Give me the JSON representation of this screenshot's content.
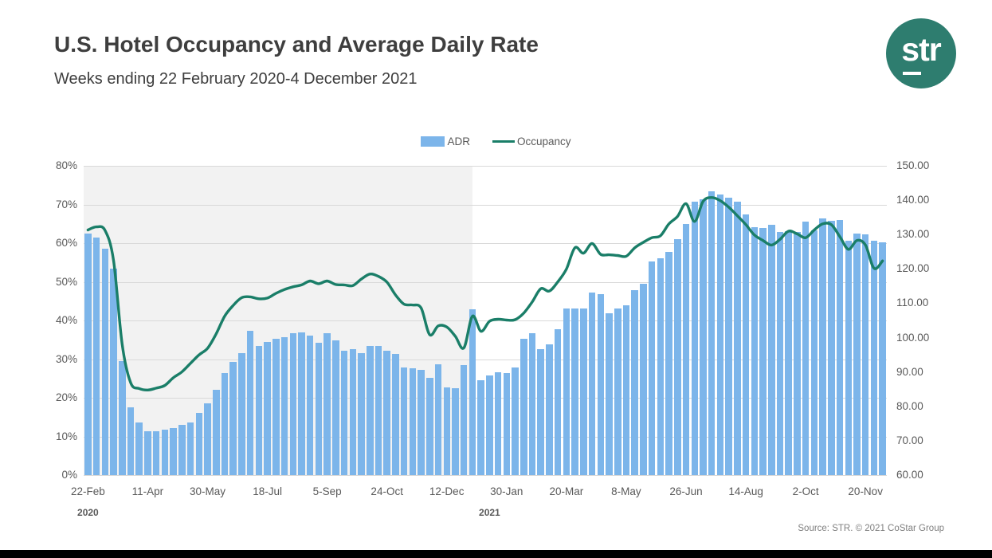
{
  "header": {
    "title": "U.S. Hotel Occupancy and Average Daily Rate",
    "subtitle": "Weeks ending 22 February 2020-4 December 2021",
    "logo_text": "str"
  },
  "legend": {
    "adr_label": "ADR",
    "occupancy_label": "Occupancy"
  },
  "footer": {
    "source": "Source: STR. © 2021 CoStar Group"
  },
  "colors": {
    "bar": "#7cb5ea",
    "line": "#1a7e68",
    "logo": "#2e7d6f",
    "shade": "#f2f2f2",
    "grid": "#d9d9d9",
    "axis_text": "#595959"
  },
  "chart_data": {
    "type": "combo-bar-line",
    "title": "U.S. Hotel Occupancy and Average Daily Rate",
    "x": [
      "22 Feb 2020",
      "29 Feb 2020",
      "7 Mar 2020",
      "14 Mar 2020",
      "21 Mar 2020",
      "28 Mar 2020",
      "4 Apr 2020",
      "11 Apr 2020",
      "18 Apr 2020",
      "25 Apr 2020",
      "2 May 2020",
      "9 May 2020",
      "16 May 2020",
      "23 May 2020",
      "30 May 2020",
      "6 Jun 2020",
      "13 Jun 2020",
      "20 Jun 2020",
      "27 Jun 2020",
      "4 Jul 2020",
      "11 Jul 2020",
      "18 Jul 2020",
      "25 Jul 2020",
      "1 Aug 2020",
      "8 Aug 2020",
      "15 Aug 2020",
      "22 Aug 2020",
      "29 Aug 2020",
      "5 Sep 2020",
      "12 Sep 2020",
      "19 Sep 2020",
      "26 Sep 2020",
      "3 Oct 2020",
      "10 Oct 2020",
      "17 Oct 2020",
      "24 Oct 2020",
      "31 Oct 2020",
      "7 Nov 2020",
      "14 Nov 2020",
      "21 Nov 2020",
      "28 Nov 2020",
      "5 Dec 2020",
      "12 Dec 2020",
      "19 Dec 2020",
      "26 Dec 2020",
      "2 Jan 2021",
      "9 Jan 2021",
      "16 Jan 2021",
      "23 Jan 2021",
      "30 Jan 2021",
      "6 Feb 2021",
      "13 Feb 2021",
      "20 Feb 2021",
      "27 Feb 2021",
      "6 Mar 2021",
      "13 Mar 2021",
      "20 Mar 2021",
      "27 Mar 2021",
      "3 Apr 2021",
      "10 Apr 2021",
      "17 Apr 2021",
      "24 Apr 2021",
      "1 May 2021",
      "8 May 2021",
      "15 May 2021",
      "22 May 2021",
      "29 May 2021",
      "5 Jun 2021",
      "12 Jun 2021",
      "19 Jun 2021",
      "26 Jun 2021",
      "3 Jul 2021",
      "10 Jul 2021",
      "17 Jul 2021",
      "24 Jul 2021",
      "31 Jul 2021",
      "7 Aug 2021",
      "14 Aug 2021",
      "21 Aug 2021",
      "28 Aug 2021",
      "4 Sep 2021",
      "11 Sep 2021",
      "18 Sep 2021",
      "25 Sep 2021",
      "2 Oct 2021",
      "9 Oct 2021",
      "16 Oct 2021",
      "23 Oct 2021",
      "30 Oct 2021",
      "6 Nov 2021",
      "13 Nov 2021",
      "20 Nov 2021",
      "27 Nov 2021",
      "4 Dec 2021"
    ],
    "series": [
      {
        "name": "ADR",
        "type": "bar",
        "axis": "right",
        "unit": "USD",
        "values": [
          130.4,
          129.2,
          125.8,
          120.0,
          93.2,
          79.8,
          75.4,
          72.7,
          72.7,
          73.2,
          73.6,
          74.6,
          75.3,
          78.0,
          80.9,
          84.8,
          89.6,
          93.0,
          95.6,
          101.9,
          97.7,
          98.7,
          99.7,
          100.2,
          101.4,
          101.6,
          100.6,
          98.6,
          101.2,
          99.3,
          96.2,
          96.6,
          95.6,
          97.7,
          97.7,
          96.3,
          95.2,
          91.3,
          91.1,
          90.7,
          88.4,
          92.2,
          85.5,
          85.2,
          92.0,
          108.2,
          87.5,
          89.0,
          90.0,
          89.6,
          91.4,
          99.6,
          101.4,
          96.6,
          98.1,
          102.5,
          108.4,
          108.4,
          108.4,
          113.1,
          112.7,
          107.0,
          108.6,
          109.5,
          113.8,
          115.7,
          122.1,
          123.2,
          124.9,
          128.6,
          133.1,
          139.5,
          140.2,
          142.7,
          141.7,
          140.7,
          139.5,
          135.8,
          132.1,
          131.9,
          132.9,
          130.8,
          131.0,
          130.8,
          133.7,
          131.3,
          134.6,
          134.0,
          134.3,
          128.1,
          130.2,
          130.1,
          128.3,
          127.8
        ]
      },
      {
        "name": "Occupancy",
        "type": "line",
        "axis": "left",
        "unit": "%",
        "values": [
          63.4,
          64.2,
          63.3,
          55.5,
          33.9,
          23.9,
          22.4,
          22.0,
          22.5,
          23.2,
          25.2,
          26.7,
          28.9,
          31.1,
          32.8,
          36.5,
          41.1,
          43.9,
          45.9,
          46.1,
          45.6,
          45.8,
          47.0,
          48.0,
          48.7,
          49.2,
          50.2,
          49.5,
          50.2,
          49.3,
          49.2,
          49.0,
          50.7,
          52.0,
          51.4,
          49.9,
          46.6,
          44.2,
          44.0,
          43.2,
          36.3,
          38.6,
          38.3,
          35.9,
          32.9,
          41.1,
          37.2,
          39.8,
          40.3,
          40.1,
          40.2,
          41.9,
          44.8,
          48.2,
          47.6,
          50.0,
          53.3,
          58.8,
          57.4,
          59.9,
          57.1,
          57.0,
          56.8,
          56.6,
          58.8,
          60.2,
          61.4,
          61.9,
          65.0,
          66.9,
          70.2,
          65.6,
          70.8,
          71.8,
          71.0,
          69.3,
          67.1,
          64.8,
          62.1,
          60.7,
          59.5,
          61.0,
          63.1,
          62.4,
          61.4,
          63.4,
          65.0,
          64.8,
          61.7,
          58.4,
          60.7,
          59.5,
          53.5,
          55.4
        ]
      }
    ],
    "left_axis": {
      "label": "Occupancy",
      "range": [
        0,
        80
      ],
      "ticks": [
        "0%",
        "10%",
        "20%",
        "30%",
        "40%",
        "50%",
        "60%",
        "70%",
        "80%"
      ]
    },
    "right_axis": {
      "label": "ADR",
      "range": [
        60,
        150
      ],
      "ticks": [
        "60.00",
        "70.00",
        "80.00",
        "90.00",
        "100.00",
        "110.00",
        "120.00",
        "130.00",
        "140.00",
        "150.00"
      ]
    },
    "x_ticks": {
      "labels": [
        "22-Feb",
        "11-Apr",
        "30-May",
        "18-Jul",
        "5-Sep",
        "24-Oct",
        "12-Dec",
        "30-Jan",
        "20-Mar",
        "8-May",
        "26-Jun",
        "14-Aug",
        "2-Oct",
        "20-Nov"
      ],
      "week_indices": [
        0,
        7,
        14,
        21,
        28,
        35,
        42,
        49,
        56,
        63,
        70,
        77,
        84,
        91
      ]
    },
    "year_labels": [
      {
        "label": "2020",
        "week_index": 0
      },
      {
        "label": "2021",
        "week_index": 47
      }
    ],
    "shaded_region": {
      "note": "gray band covering the 2020 portion of the chart",
      "fraction_of_width": 0.484
    },
    "grid": "horizontal",
    "legend_position": "top-center"
  }
}
